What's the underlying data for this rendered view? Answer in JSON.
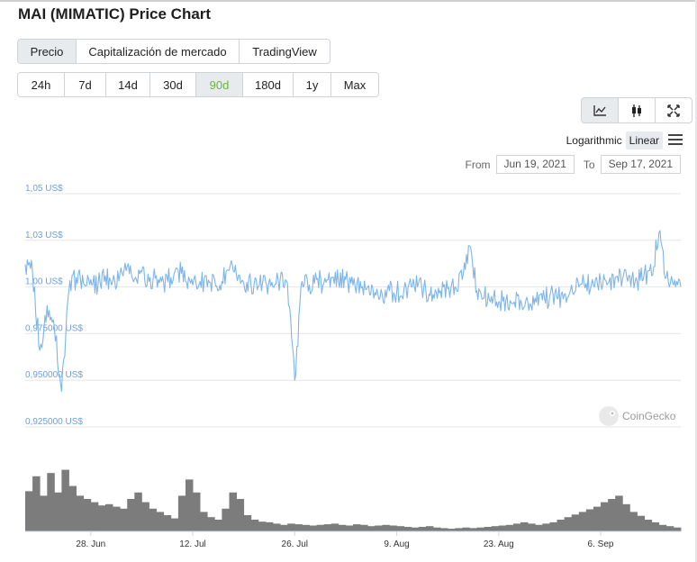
{
  "page": {
    "title": "MAI (MIMATIC) Price Chart"
  },
  "view_tabs": [
    {
      "label": "Precio",
      "active": true
    },
    {
      "label": "Capitalización de mercado",
      "active": false
    },
    {
      "label": "TradingView",
      "active": false
    }
  ],
  "range_tabs": [
    {
      "label": "24h",
      "active": false
    },
    {
      "label": "7d",
      "active": false
    },
    {
      "label": "14d",
      "active": false
    },
    {
      "label": "30d",
      "active": false
    },
    {
      "label": "90d",
      "active": true
    },
    {
      "label": "180d",
      "active": false
    },
    {
      "label": "1y",
      "active": false
    },
    {
      "label": "Max",
      "active": false
    }
  ],
  "chart_type_icons": [
    "line-chart-icon",
    "candlestick-icon",
    "fullscreen-icon"
  ],
  "scale": {
    "log_label": "Logarithmic",
    "linear_label": "Linear",
    "selected": "Linear",
    "menu_icon": "hamburger-menu-icon"
  },
  "date_range": {
    "from_label": "From",
    "from": "Jun 19, 2021",
    "to_label": "To",
    "to": "Sep 17, 2021"
  },
  "watermark": {
    "text": "CoinGecko",
    "icon": "coingecko-logo-icon"
  },
  "colors": {
    "line": "#7cb5ec",
    "accent": "#6cb33f",
    "volume": "#7c7c7c",
    "ylabel": "#6e9fd6"
  },
  "chart_data": {
    "type": "line",
    "x_start": "2021-06-19",
    "x_end": "2021-09-17",
    "x_tick_labels": [
      "28. Jun",
      "12. Jul",
      "26. Jul",
      "9. Aug",
      "23. Aug",
      "6. Sep"
    ],
    "x_tick_dates": [
      "2021-06-28",
      "2021-07-12",
      "2021-07-26",
      "2021-08-09",
      "2021-08-23",
      "2021-09-06"
    ],
    "y_tick_labels": [
      "1,05 US$",
      "1,03 US$",
      "1,00 US$",
      "0,975000 US$",
      "0,950000 US$",
      "0,925000 US$"
    ],
    "y_tick_values": [
      1.05,
      1.025,
      1.0,
      0.975,
      0.95,
      0.925
    ],
    "ylim": [
      0.925,
      1.05
    ],
    "grid": true,
    "price_series": {
      "name": "Precio",
      "points": [
        [
          "2021-06-19",
          1.012
        ],
        [
          "2021-06-20",
          1.008
        ],
        [
          "2021-06-21",
          0.966
        ],
        [
          "2021-06-22",
          0.99
        ],
        [
          "2021-06-23",
          0.978
        ],
        [
          "2021-06-24",
          0.944
        ],
        [
          "2021-06-25",
          0.998
        ],
        [
          "2021-06-26",
          1.005
        ],
        [
          "2021-06-27",
          1.002
        ],
        [
          "2021-06-28",
          1.004
        ],
        [
          "2021-06-29",
          1.001
        ],
        [
          "2021-06-30",
          1.006
        ],
        [
          "2021-07-01",
          1.003
        ],
        [
          "2021-07-02",
          1.007
        ],
        [
          "2021-07-03",
          1.011
        ],
        [
          "2021-07-04",
          1.004
        ],
        [
          "2021-07-05",
          1.008
        ],
        [
          "2021-07-06",
          1.003
        ],
        [
          "2021-07-07",
          1.006
        ],
        [
          "2021-07-08",
          1.002
        ],
        [
          "2021-07-09",
          1.005
        ],
        [
          "2021-07-10",
          1.009
        ],
        [
          "2021-07-11",
          1.003
        ],
        [
          "2021-07-12",
          1.001
        ],
        [
          "2021-07-13",
          1.003
        ],
        [
          "2021-07-14",
          1.0
        ],
        [
          "2021-07-15",
          1.004
        ],
        [
          "2021-07-16",
          1.003
        ],
        [
          "2021-07-17",
          1.009
        ],
        [
          "2021-07-18",
          1.006
        ],
        [
          "2021-07-19",
          1.002
        ],
        [
          "2021-07-20",
          1.001
        ],
        [
          "2021-07-21",
          1.0
        ],
        [
          "2021-07-22",
          1.003
        ],
        [
          "2021-07-23",
          1.0
        ],
        [
          "2021-07-24",
          1.004
        ],
        [
          "2021-07-25",
          1.002
        ],
        [
          "2021-07-26",
          0.95
        ],
        [
          "2021-07-27",
          1.003
        ],
        [
          "2021-07-28",
          1.001
        ],
        [
          "2021-07-29",
          1.004
        ],
        [
          "2021-07-30",
          1.002
        ],
        [
          "2021-07-31",
          1.005
        ],
        [
          "2021-08-01",
          1.003
        ],
        [
          "2021-08-02",
          1.004
        ],
        [
          "2021-08-03",
          1.001
        ],
        [
          "2021-08-04",
          1.003
        ],
        [
          "2021-08-05",
          1.0
        ],
        [
          "2021-08-06",
          0.997
        ],
        [
          "2021-08-07",
          0.996
        ],
        [
          "2021-08-08",
          0.998
        ],
        [
          "2021-08-09",
          0.997
        ],
        [
          "2021-08-10",
          0.999
        ],
        [
          "2021-08-11",
          1.0
        ],
        [
          "2021-08-12",
          1.002
        ],
        [
          "2021-08-13",
          0.998
        ],
        [
          "2021-08-14",
          0.996
        ],
        [
          "2021-08-15",
          0.998
        ],
        [
          "2021-08-16",
          0.999
        ],
        [
          "2021-08-17",
          1.0
        ],
        [
          "2021-08-18",
          1.004
        ],
        [
          "2021-08-19",
          1.022
        ],
        [
          "2021-08-20",
          0.998
        ],
        [
          "2021-08-21",
          0.994
        ],
        [
          "2021-08-22",
          0.995
        ],
        [
          "2021-08-23",
          0.992
        ],
        [
          "2021-08-24",
          0.993
        ],
        [
          "2021-08-25",
          0.991
        ],
        [
          "2021-08-26",
          0.993
        ],
        [
          "2021-08-27",
          0.992
        ],
        [
          "2021-08-28",
          0.994
        ],
        [
          "2021-08-29",
          0.993
        ],
        [
          "2021-08-30",
          0.995
        ],
        [
          "2021-08-31",
          0.994
        ],
        [
          "2021-09-01",
          0.996
        ],
        [
          "2021-09-02",
          1.001
        ],
        [
          "2021-09-03",
          1.0
        ],
        [
          "2021-09-04",
          1.002
        ],
        [
          "2021-09-05",
          1.001
        ],
        [
          "2021-09-06",
          1.003
        ],
        [
          "2021-09-07",
          1.002
        ],
        [
          "2021-09-08",
          1.005
        ],
        [
          "2021-09-09",
          1.004
        ],
        [
          "2021-09-10",
          1.006
        ],
        [
          "2021-09-11",
          1.003
        ],
        [
          "2021-09-12",
          1.008
        ],
        [
          "2021-09-13",
          1.006
        ],
        [
          "2021-09-14",
          1.029
        ],
        [
          "2021-09-15",
          1.005
        ],
        [
          "2021-09-16",
          1.001
        ],
        [
          "2021-09-17",
          1.0
        ]
      ]
    },
    "volume_series": {
      "relative_values": [
        0.62,
        0.85,
        0.55,
        0.9,
        0.6,
        0.95,
        0.7,
        0.55,
        0.5,
        0.45,
        0.4,
        0.42,
        0.38,
        0.35,
        0.5,
        0.6,
        0.45,
        0.35,
        0.3,
        0.25,
        0.2,
        0.55,
        0.8,
        0.6,
        0.3,
        0.22,
        0.18,
        0.35,
        0.6,
        0.5,
        0.25,
        0.18,
        0.15,
        0.14,
        0.12,
        0.1,
        0.12,
        0.11,
        0.1,
        0.09,
        0.1,
        0.11,
        0.12,
        0.1,
        0.09,
        0.11,
        0.1,
        0.08,
        0.09,
        0.1,
        0.09,
        0.08,
        0.07,
        0.06,
        0.07,
        0.08,
        0.06,
        0.05,
        0.04,
        0.05,
        0.06,
        0.05,
        0.06,
        0.07,
        0.08,
        0.09,
        0.1,
        0.12,
        0.14,
        0.12,
        0.1,
        0.12,
        0.14,
        0.18,
        0.22,
        0.26,
        0.3,
        0.34,
        0.38,
        0.45,
        0.5,
        0.55,
        0.42,
        0.3,
        0.24,
        0.18,
        0.14,
        0.1,
        0.08,
        0.06
      ]
    }
  }
}
